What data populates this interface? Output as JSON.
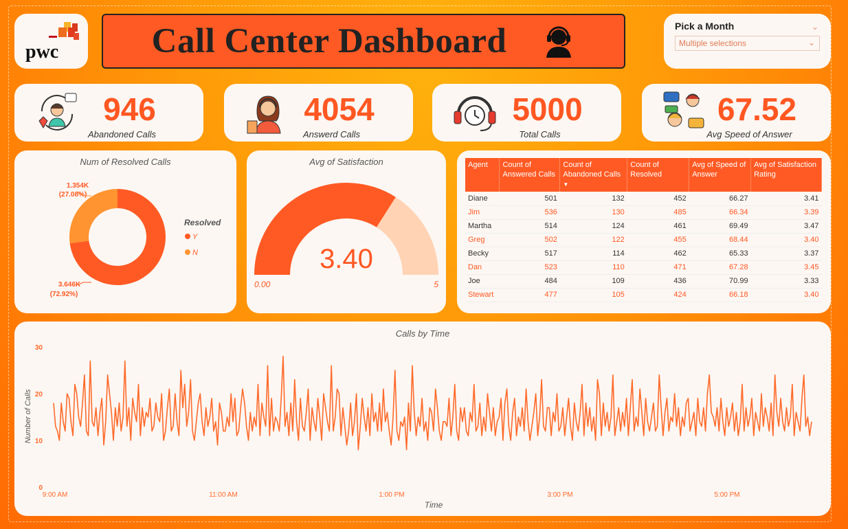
{
  "logo": {
    "text": "pwc"
  },
  "header": {
    "title": "Call Center Dashboard",
    "icon": "headset-agent-icon"
  },
  "filter": {
    "label": "Pick a Month",
    "value": "Multiple selections"
  },
  "kpis": [
    {
      "value": "946",
      "caption": "Abandoned Calls",
      "icon": "callback-agent-icon"
    },
    {
      "value": "4054",
      "caption": "Answerd Calls",
      "icon": "operator-icon"
    },
    {
      "value": "5000",
      "caption": "Total Calls",
      "icon": "headphones-clock-icon"
    },
    {
      "value": "67.52",
      "caption": "Avg Speed of Answer",
      "icon": "conversation-icon"
    }
  ],
  "donut": {
    "title": "Num of Resolved Calls",
    "legend_title": "Resolved",
    "slices": [
      {
        "name": "Y",
        "value": 3646,
        "label": "3.646K",
        "pct": "(72.92%)",
        "color": "#ff5a24"
      },
      {
        "name": "N",
        "value": 1354,
        "label": "1.354K",
        "pct": "(27.08%)",
        "color": "#ff9430"
      }
    ]
  },
  "gauge": {
    "title": "Avg of Satisfaction",
    "value": 3.4,
    "value_label": "3.40",
    "min": 0,
    "max": 5,
    "min_label": "0.00",
    "max_label": "5",
    "fill_color": "#ff5a24",
    "track_color": "#ffd3b3"
  },
  "table": {
    "columns": [
      "Agent",
      "Count of Answered Calls",
      "Count of Abandoned Calls",
      "Count of Resolved",
      "Avg of Speed of Answer",
      "Avg of Satisfaction Rating"
    ],
    "rows": [
      [
        "Diane",
        "501",
        "132",
        "452",
        "66.27",
        "3.41"
      ],
      [
        "Jim",
        "536",
        "130",
        "485",
        "66.34",
        "3.39"
      ],
      [
        "Martha",
        "514",
        "124",
        "461",
        "69.49",
        "3.47"
      ],
      [
        "Greg",
        "502",
        "122",
        "455",
        "68.44",
        "3.40"
      ],
      [
        "Becky",
        "517",
        "114",
        "462",
        "65.33",
        "3.37"
      ],
      [
        "Dan",
        "523",
        "110",
        "471",
        "67.28",
        "3.45"
      ],
      [
        "Joe",
        "484",
        "109",
        "436",
        "70.99",
        "3.33"
      ],
      [
        "Stewart",
        "477",
        "105",
        "424",
        "66.18",
        "3.40"
      ]
    ]
  },
  "chart_data": {
    "type": "line",
    "title": "Calls by Time",
    "xlabel": "Time",
    "ylabel": "Number of Calls",
    "ylim": [
      0,
      30
    ],
    "yticks": [
      "0",
      "10",
      "20",
      "30"
    ],
    "xticks": [
      "9:00 AM",
      "11:00 AM",
      "1:00 PM",
      "3:00 PM",
      "5:00 PM"
    ],
    "color": "#ff6a2a",
    "values": [
      18,
      13,
      12,
      10,
      18,
      14,
      12,
      20,
      19,
      14,
      11,
      22,
      20,
      15,
      13,
      18,
      24,
      12,
      11,
      27,
      14,
      13,
      17,
      11,
      16,
      19,
      9,
      14,
      24,
      20,
      16,
      10,
      17,
      13,
      18,
      12,
      15,
      27,
      13,
      17,
      10,
      19,
      16,
      14,
      22,
      11,
      17,
      13,
      16,
      15,
      19,
      12,
      13,
      18,
      15,
      14,
      20,
      10,
      12,
      17,
      21,
      12,
      13,
      20,
      14,
      11,
      25,
      17,
      22,
      13,
      16,
      23,
      12,
      10,
      14,
      18,
      20,
      14,
      11,
      17,
      13,
      15,
      19,
      12,
      14,
      9,
      18,
      16,
      12,
      12,
      15,
      13,
      20,
      14,
      19,
      11,
      12,
      17,
      21,
      18,
      13,
      10,
      16,
      12,
      15,
      13,
      22,
      11,
      18,
      15,
      13,
      26,
      11,
      19,
      12,
      15,
      14,
      12,
      19,
      28,
      13,
      16,
      11,
      18,
      12,
      23,
      14,
      10,
      19,
      13,
      12,
      16,
      21,
      10,
      17,
      14,
      12,
      19,
      15,
      10,
      20,
      17,
      14,
      12,
      26,
      12,
      15,
      21,
      20,
      11,
      17,
      13,
      9,
      12,
      18,
      11,
      14,
      20,
      8,
      13,
      19,
      15,
      12,
      17,
      11,
      20,
      14,
      16,
      12,
      18,
      12,
      21,
      14,
      16,
      12,
      9,
      15,
      25,
      12,
      10,
      14,
      13,
      15,
      8,
      18,
      12,
      26,
      16,
      11,
      15,
      13,
      19,
      12,
      14,
      10,
      17,
      16,
      12,
      21,
      17,
      12,
      10,
      14,
      14,
      13,
      19,
      11,
      15,
      22,
      12,
      10,
      17,
      14,
      17,
      12,
      11,
      16,
      14,
      22,
      12,
      13,
      18,
      11,
      15,
      12,
      20,
      16,
      12,
      17,
      11,
      14,
      15,
      19,
      10,
      18,
      21,
      13,
      10,
      16,
      19,
      11,
      15,
      13,
      17,
      12,
      21,
      14,
      10,
      13,
      16,
      20,
      11,
      15,
      23,
      13,
      12,
      17,
      17,
      11,
      16,
      14,
      20,
      12,
      13,
      17,
      11,
      15,
      19,
      13,
      10,
      18,
      14,
      12,
      16,
      22,
      11,
      18,
      13,
      17,
      12,
      15,
      10,
      23,
      20,
      11,
      18,
      13,
      16,
      12,
      15,
      24,
      11,
      14,
      17,
      12,
      16,
      13,
      19,
      11,
      17,
      23,
      12,
      15,
      13,
      21,
      16,
      11,
      19,
      14,
      12,
      15,
      18,
      12,
      13,
      24,
      17,
      11,
      16,
      19,
      12,
      15,
      14,
      20,
      13,
      17,
      11,
      15,
      13,
      18,
      19,
      12,
      14,
      16,
      11,
      19,
      14,
      13,
      17,
      12,
      20,
      24,
      16,
      15,
      13,
      17,
      12,
      19,
      14,
      11,
      17,
      13,
      15,
      18,
      12,
      16,
      11,
      14,
      22,
      12,
      17,
      13,
      15,
      19,
      11,
      16,
      14,
      12,
      20,
      13,
      17,
      15,
      12,
      18,
      11,
      24,
      16,
      13,
      19,
      14,
      12,
      17,
      13,
      15,
      22,
      11,
      16,
      14,
      12,
      19,
      24,
      13,
      15,
      11,
      14
    ]
  }
}
